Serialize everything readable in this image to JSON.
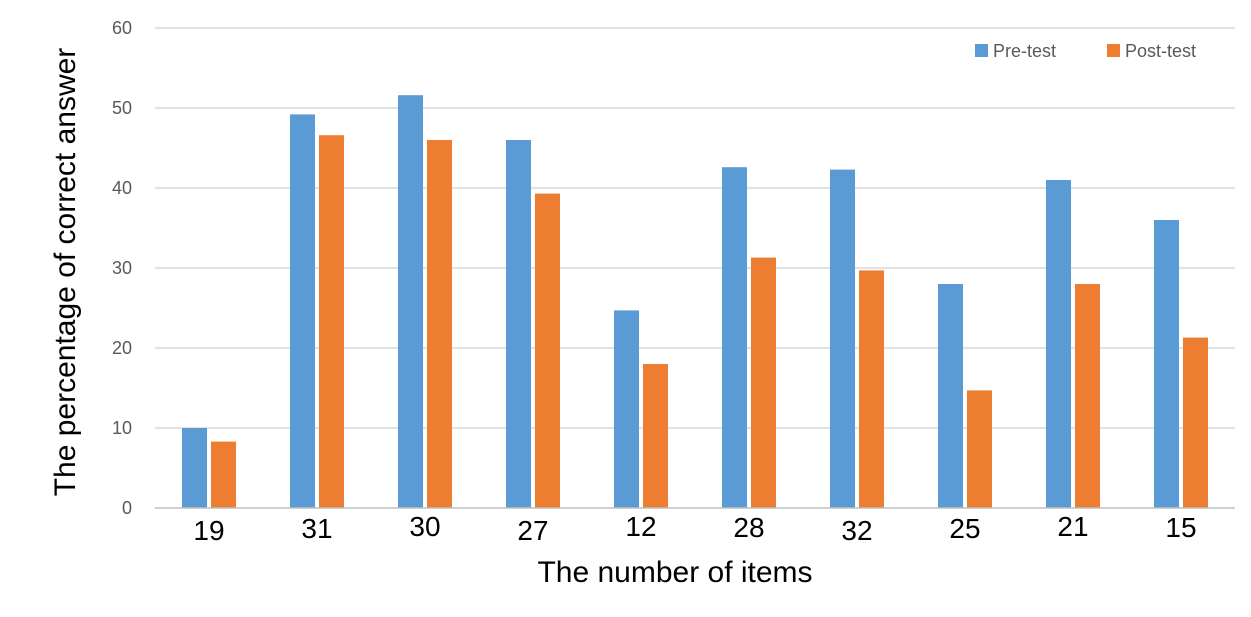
{
  "chart_data": {
    "type": "bar",
    "title": "",
    "xlabel": "The number of items",
    "ylabel": "The percentage of correct answer",
    "categories": [
      "19",
      "31",
      "30",
      "27",
      "12",
      "28",
      "32",
      "25",
      "21",
      "15"
    ],
    "series": [
      {
        "name": "Pre-test",
        "color": "#5b9bd5",
        "values": [
          10,
          49.2,
          51.6,
          46,
          24.7,
          42.6,
          42.3,
          28,
          41,
          36
        ]
      },
      {
        "name": "Post-test",
        "color": "#ed7d31",
        "values": [
          8.3,
          46.6,
          46,
          39.3,
          18,
          31.3,
          29.7,
          14.7,
          28,
          21.3
        ]
      }
    ],
    "ylim": [
      0,
      60
    ],
    "yticks": [
      "0",
      "10",
      "20",
      "30",
      "40",
      "50",
      "60"
    ],
    "grid": true,
    "legend_position": "top-right"
  }
}
